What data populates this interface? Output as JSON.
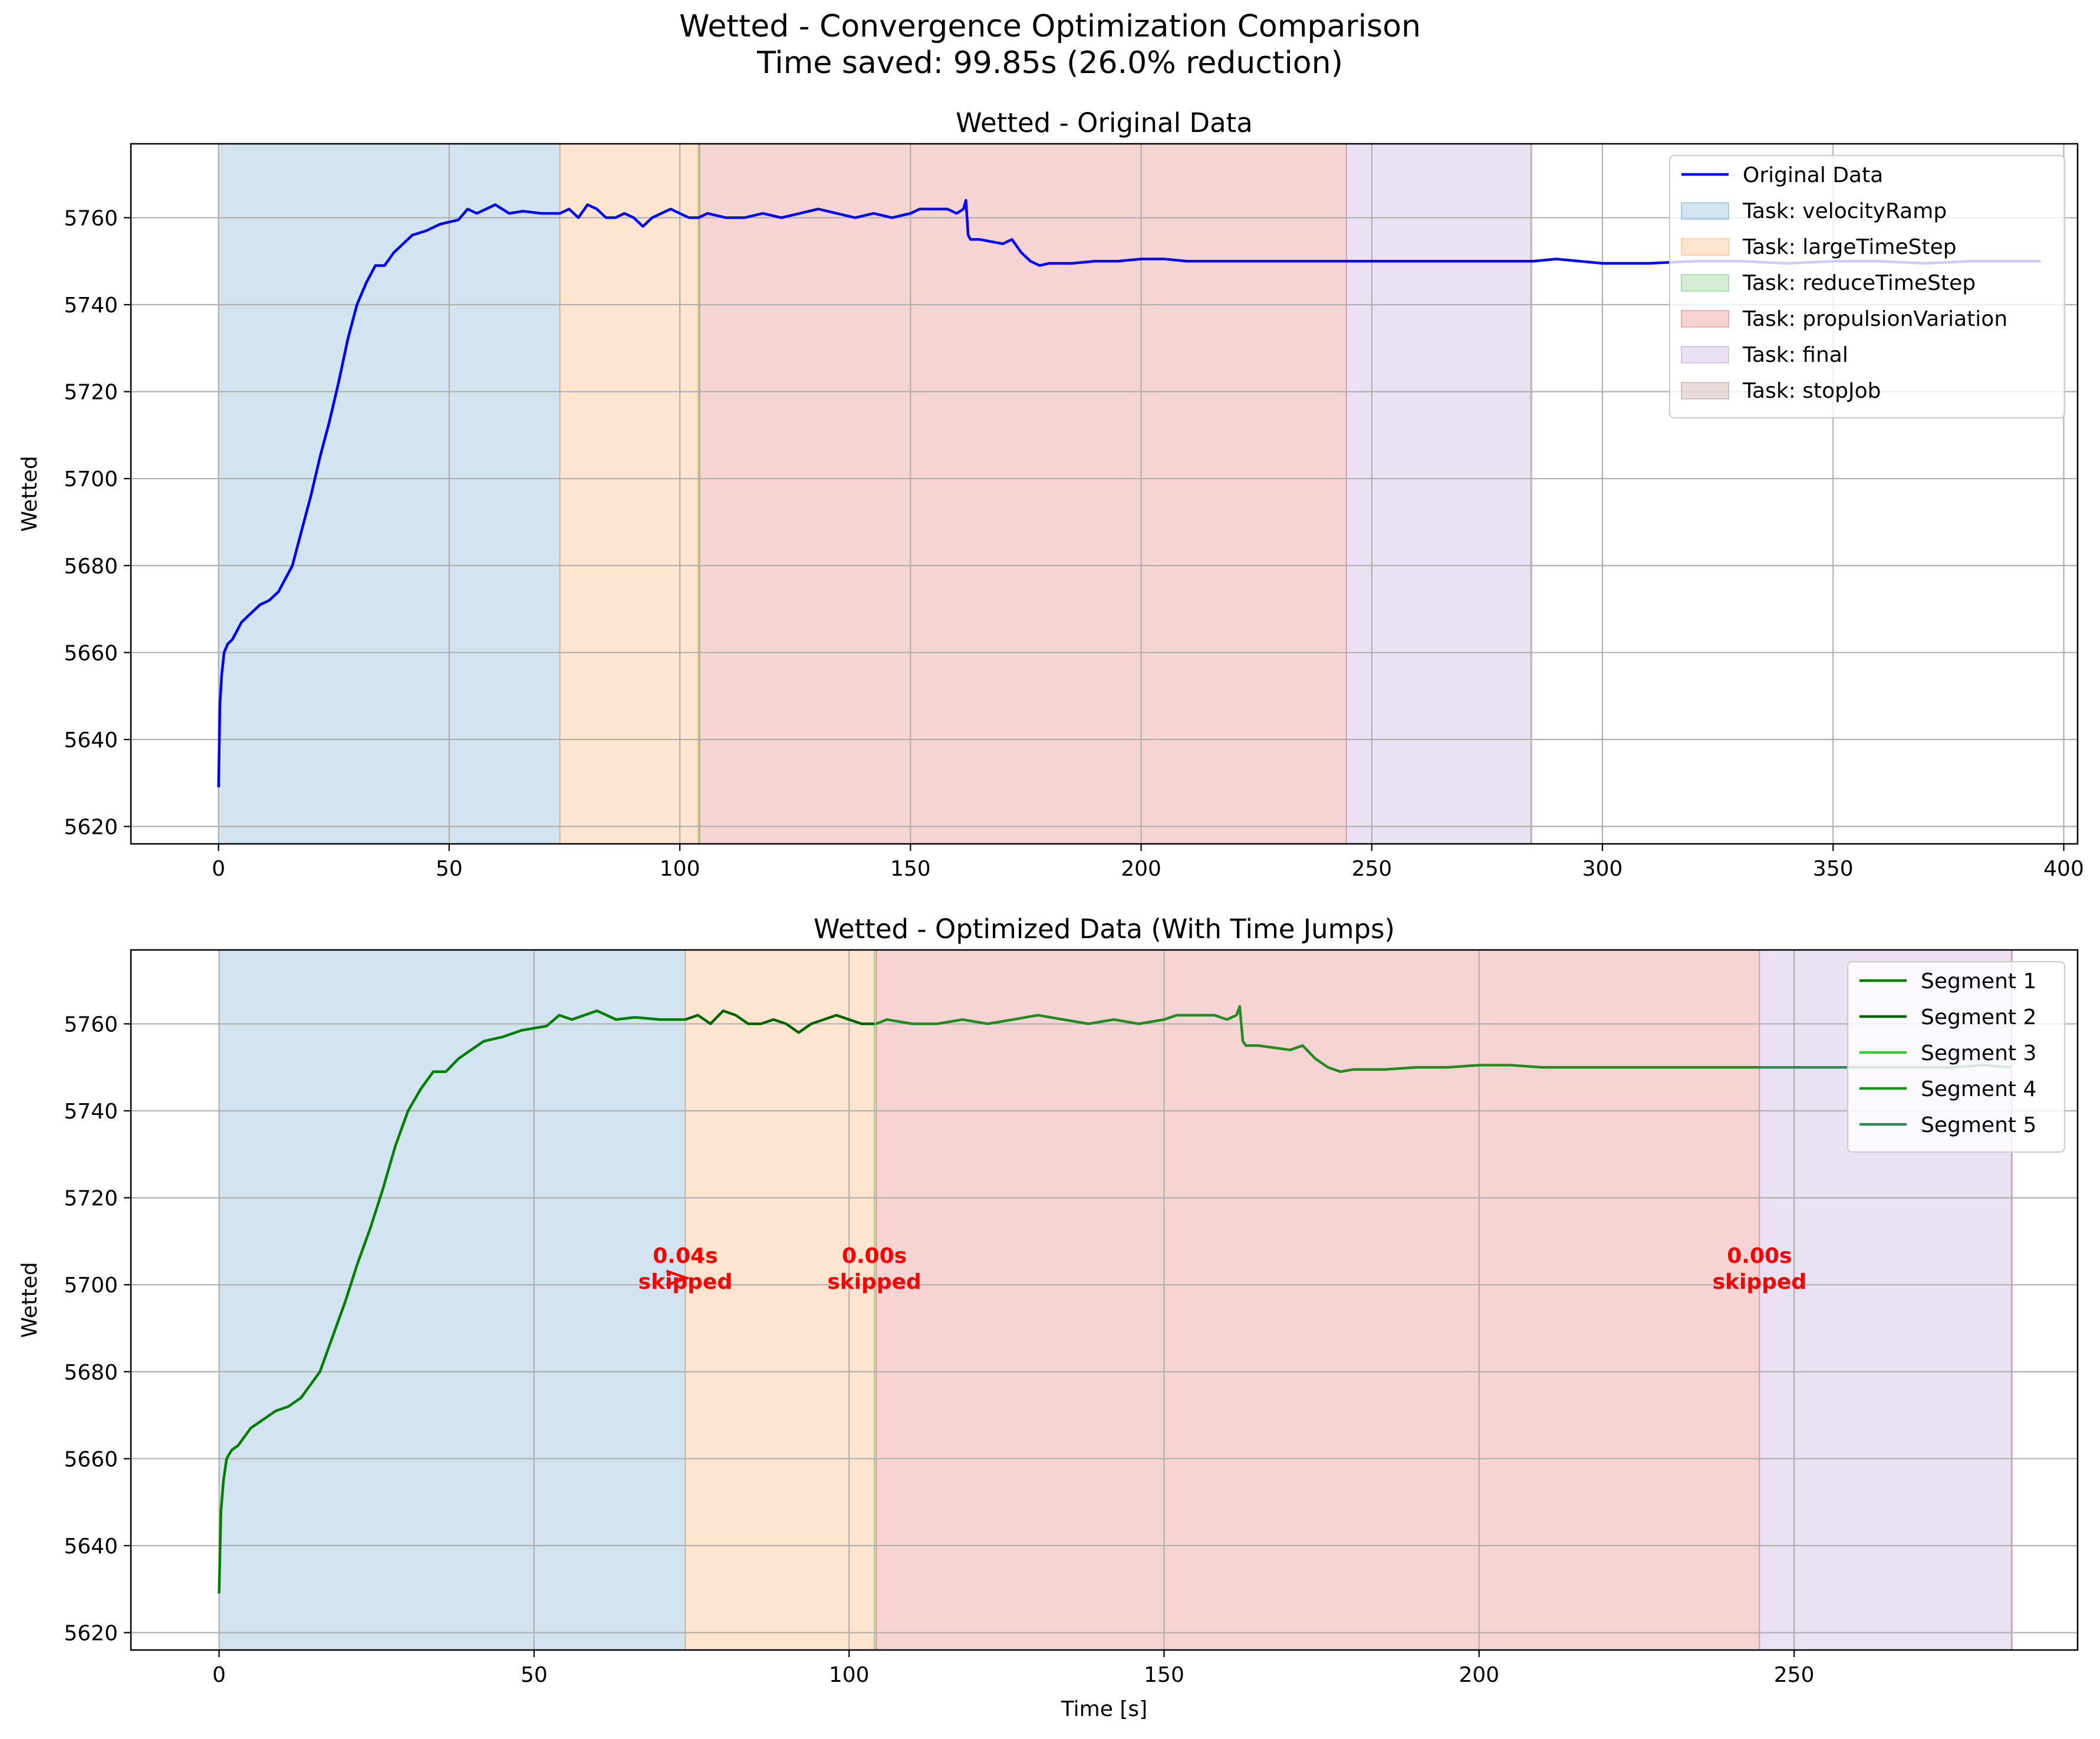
{
  "figure": {
    "title_line1": "Wetted - Convergence Optimization Comparison",
    "title_line2": "Time saved: 99.85s (26.0% reduction)"
  },
  "colors": {
    "original_line": "#0000ff",
    "segment_colors": [
      "#007f00",
      "#006400",
      "#32cd32",
      "#228b22",
      "#2e8b57"
    ],
    "annotation": "#ff0000",
    "tasks": {
      "velocityRamp": "#1f77b4",
      "largeTimeStep": "#ff7f0e",
      "reduceTimeStep": "#2ca02c",
      "propulsionVariation": "#d62728",
      "final": "#9467bd",
      "stopJob": "#8c564b"
    }
  },
  "chart_data": [
    {
      "type": "line",
      "title": "Wetted - Original Data",
      "xlabel": "",
      "ylabel": "Wetted",
      "xlim": [
        -19,
        403
      ],
      "ylim": [
        5616,
        5777
      ],
      "xticks": [
        0,
        50,
        100,
        150,
        200,
        250,
        300,
        350,
        400
      ],
      "yticks": [
        5620,
        5640,
        5660,
        5680,
        5700,
        5720,
        5740,
        5760
      ],
      "grid": true,
      "legend_position": "top-right",
      "legend": [
        "Original Data",
        "Task: velocityRamp",
        "Task: largeTimeStep",
        "Task: reduceTimeStep",
        "Task: propulsionVariation",
        "Task: final",
        "Task: stopJob"
      ],
      "task_spans": [
        {
          "task": "velocityRamp",
          "start": 0,
          "end": 74
        },
        {
          "task": "largeTimeStep",
          "start": 74,
          "end": 104
        },
        {
          "task": "reduceTimeStep",
          "start": 104,
          "end": 104.3
        },
        {
          "task": "propulsionVariation",
          "start": 104.3,
          "end": 244.5
        },
        {
          "task": "final",
          "start": 244.5,
          "end": 284.5
        },
        {
          "task": "stopJob",
          "start": 284.5,
          "end": 284.6
        }
      ],
      "series": [
        {
          "name": "Original Data",
          "x": [
            0,
            0.3,
            0.7,
            1.2,
            2,
            3,
            5,
            7,
            9,
            11,
            13,
            14,
            16,
            18,
            20,
            22,
            24,
            26,
            28,
            30,
            32,
            34,
            36,
            38,
            40,
            42,
            45,
            48,
            50,
            52,
            54,
            56,
            60,
            63,
            66,
            70,
            72,
            74,
            76,
            78,
            80,
            82,
            84,
            86,
            88,
            90,
            92,
            94,
            96,
            98,
            100,
            102,
            104,
            106,
            110,
            114,
            118,
            122,
            126,
            130,
            134,
            138,
            142,
            146,
            150,
            152,
            155,
            158,
            160,
            161.5,
            162,
            162.5,
            163,
            165,
            170,
            172,
            174,
            176,
            178,
            180,
            185,
            190,
            195,
            200,
            205,
            210,
            220,
            230,
            240,
            250,
            260,
            270,
            280,
            285,
            290,
            300,
            310,
            320,
            330,
            340,
            350,
            360,
            370,
            380,
            395
          ],
          "y": [
            5629,
            5648,
            5655,
            5660,
            5662,
            5663,
            5667,
            5669,
            5671,
            5672,
            5674,
            5676,
            5680,
            5688,
            5696,
            5705,
            5713,
            5722,
            5732,
            5740,
            5745,
            5749,
            5749,
            5752,
            5754,
            5756,
            5757,
            5758.5,
            5759,
            5759.5,
            5762,
            5761,
            5763,
            5761,
            5761.5,
            5761,
            5761,
            5761,
            5762,
            5760,
            5763,
            5762,
            5760,
            5760,
            5761,
            5760,
            5758,
            5760,
            5761,
            5762,
            5761,
            5760,
            5760,
            5761,
            5760,
            5760,
            5761,
            5760,
            5761,
            5762,
            5761,
            5760,
            5761,
            5760,
            5761,
            5762,
            5762,
            5762,
            5761,
            5762,
            5764,
            5756,
            5755,
            5755,
            5754,
            5755,
            5752,
            5750,
            5749,
            5749.5,
            5749.5,
            5750,
            5750,
            5750.5,
            5750.5,
            5750,
            5750,
            5750,
            5750,
            5750,
            5750,
            5750,
            5750,
            5750,
            5750.5,
            5749.5,
            5749.5,
            5750,
            5750,
            5749.5,
            5750,
            5750,
            5749.5,
            5750,
            5750
          ]
        }
      ]
    },
    {
      "type": "line",
      "title": "Wetted - Optimized Data (With Time Jumps)",
      "xlabel": "Time [s]",
      "ylabel": "Wetted",
      "xlim": [
        -14,
        295
      ],
      "ylim": [
        5616,
        5777
      ],
      "xticks": [
        0,
        50,
        100,
        150,
        200,
        250
      ],
      "yticks": [
        5620,
        5640,
        5660,
        5680,
        5700,
        5720,
        5740,
        5760
      ],
      "grid": true,
      "legend_position": "top-right",
      "legend": [
        "Segment 1",
        "Segment 2",
        "Segment 3",
        "Segment 4",
        "Segment 5"
      ],
      "task_spans": [
        {
          "task": "velocityRamp",
          "start": 0,
          "end": 74
        },
        {
          "task": "largeTimeStep",
          "start": 74,
          "end": 104
        },
        {
          "task": "reduceTimeStep",
          "start": 104,
          "end": 104.3
        },
        {
          "task": "propulsionVariation",
          "start": 104.3,
          "end": 244.5
        },
        {
          "task": "final",
          "start": 244.5,
          "end": 284.5
        },
        {
          "task": "stopJob",
          "start": 284.5,
          "end": 284.6
        }
      ],
      "annotations": [
        {
          "x": 74,
          "y": 5701,
          "line1": "0.04s",
          "line2": "skipped",
          "arrow": true
        },
        {
          "x": 104,
          "y": 5701,
          "line1": "0.00s",
          "line2": "skipped",
          "arrow": false
        },
        {
          "x": 244.5,
          "y": 5701,
          "line1": "0.00s",
          "line2": "skipped",
          "arrow": false
        }
      ],
      "series": [
        {
          "name": "Segment 1",
          "x": [
            0,
            0.3,
            0.7,
            1.2,
            2,
            3,
            5,
            7,
            9,
            11,
            13,
            14,
            16,
            18,
            20,
            22,
            24,
            26,
            28,
            30,
            32,
            34,
            36,
            38,
            40,
            42,
            45,
            48,
            50,
            52,
            54,
            56,
            60,
            63,
            66,
            70,
            72,
            74
          ],
          "y": [
            5629,
            5648,
            5655,
            5660,
            5662,
            5663,
            5667,
            5669,
            5671,
            5672,
            5674,
            5676,
            5680,
            5688,
            5696,
            5705,
            5713,
            5722,
            5732,
            5740,
            5745,
            5749,
            5749,
            5752,
            5754,
            5756,
            5757,
            5758.5,
            5759,
            5759.5,
            5762,
            5761,
            5763,
            5761,
            5761.5,
            5761,
            5761,
            5761
          ]
        },
        {
          "name": "Segment 2",
          "x": [
            74,
            76,
            78,
            80,
            82,
            84,
            86,
            88,
            90,
            92,
            94,
            96,
            98,
            100,
            102,
            104
          ],
          "y": [
            5761,
            5762,
            5760,
            5763,
            5762,
            5760,
            5760,
            5761,
            5760,
            5758,
            5760,
            5761,
            5762,
            5761,
            5760,
            5760
          ]
        },
        {
          "name": "Segment 3",
          "x": [
            104,
            104.3
          ],
          "y": [
            5760,
            5760
          ]
        },
        {
          "name": "Segment 4",
          "x": [
            104.3,
            106,
            110,
            114,
            118,
            122,
            126,
            130,
            134,
            138,
            142,
            146,
            150,
            152,
            155,
            158,
            160,
            161.5,
            162,
            162.5,
            163,
            165,
            170,
            172,
            174,
            176,
            178,
            180,
            185,
            190,
            195,
            200,
            205,
            210,
            220,
            230,
            240,
            244.5
          ],
          "y": [
            5760,
            5761,
            5760,
            5760,
            5761,
            5760,
            5761,
            5762,
            5761,
            5760,
            5761,
            5760,
            5761,
            5762,
            5762,
            5762,
            5761,
            5762,
            5764,
            5756,
            5755,
            5755,
            5754,
            5755,
            5752,
            5750,
            5749,
            5749.5,
            5749.5,
            5750,
            5750,
            5750.5,
            5750.5,
            5750,
            5750,
            5750,
            5750,
            5750
          ]
        },
        {
          "name": "Segment 5",
          "x": [
            244.5,
            250,
            255,
            260,
            265,
            270,
            275,
            280,
            284.5
          ],
          "y": [
            5750,
            5750,
            5750,
            5750,
            5750,
            5750,
            5750,
            5750.5,
            5750
          ]
        }
      ]
    }
  ]
}
